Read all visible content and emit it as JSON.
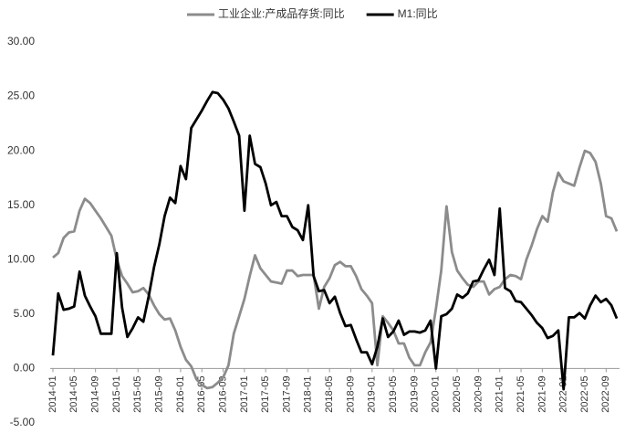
{
  "chart_data": {
    "type": "line",
    "categories": [
      "2014-01",
      null,
      null,
      null,
      "2014-05",
      null,
      null,
      null,
      "2014-09",
      null,
      null,
      null,
      "2015-01",
      null,
      null,
      null,
      "2015-05",
      null,
      null,
      null,
      "2015-09",
      null,
      null,
      null,
      "2016-01",
      null,
      null,
      null,
      "2016-05",
      null,
      null,
      null,
      "2016-09",
      null,
      null,
      null,
      "2017-01",
      null,
      null,
      null,
      "2017-05",
      null,
      null,
      null,
      "2017-09",
      null,
      null,
      null,
      "2018-01",
      null,
      null,
      null,
      "2018-05",
      null,
      null,
      null,
      "2018-09",
      null,
      null,
      null,
      "2019-01",
      null,
      null,
      null,
      "2019-05",
      null,
      null,
      null,
      "2019-09",
      null,
      null,
      null,
      "2020-01",
      null,
      null,
      null,
      "2020-05",
      null,
      null,
      null,
      "2020-09",
      null,
      null,
      null,
      "2021-01",
      null,
      null,
      null,
      "2021-05",
      null,
      null,
      null,
      "2021-09",
      null,
      null,
      null,
      "2022-01",
      null,
      null,
      null,
      "2022-05",
      null,
      null,
      null,
      "2022-09",
      null,
      null
    ],
    "series": [
      {
        "name": "工业企业:产成品存货:同比",
        "color": "#8c8c8c",
        "values": [
          10.2,
          10.6,
          12.0,
          12.5,
          12.6,
          14.5,
          15.6,
          15.2,
          14.5,
          13.8,
          13.0,
          12.2,
          10.0,
          8.5,
          7.8,
          7.0,
          7.1,
          7.4,
          6.8,
          5.8,
          5.0,
          4.5,
          4.6,
          3.5,
          2.0,
          0.8,
          0.2,
          -1.0,
          -1.5,
          -1.8,
          -1.7,
          -1.3,
          -0.8,
          0.3,
          3.2,
          4.8,
          6.4,
          8.5,
          10.4,
          9.2,
          8.6,
          8.0,
          7.9,
          7.8,
          9.0,
          9.0,
          8.5,
          8.6,
          8.6,
          8.6,
          5.5,
          7.5,
          8.3,
          9.5,
          9.8,
          9.4,
          9.4,
          8.5,
          7.3,
          6.7,
          6.0,
          0.3,
          4.8,
          4.2,
          3.5,
          2.3,
          2.3,
          1.0,
          0.3,
          0.3,
          1.5,
          2.4,
          5.5,
          9.0,
          14.9,
          10.7,
          9.0,
          8.3,
          7.7,
          7.5,
          8.0,
          8.0,
          6.8,
          7.3,
          7.5,
          8.2,
          8.6,
          8.5,
          8.2,
          10.0,
          11.3,
          12.8,
          14.0,
          13.5,
          16.2,
          18.0,
          17.2,
          17.0,
          16.8,
          18.5,
          20.0,
          19.8,
          19.0,
          17.0,
          14.0,
          13.8,
          12.6
        ]
      },
      {
        "name": "M1:同比",
        "color": "#000000",
        "values": [
          1.2,
          6.9,
          5.4,
          5.5,
          5.7,
          8.9,
          6.7,
          5.7,
          4.8,
          3.2,
          3.2,
          3.2,
          10.6,
          5.6,
          2.9,
          3.7,
          4.7,
          4.3,
          6.6,
          9.3,
          11.4,
          14.0,
          15.7,
          15.2,
          18.6,
          17.4,
          22.1,
          22.9,
          23.7,
          24.6,
          25.4,
          25.3,
          24.7,
          23.9,
          22.7,
          21.4,
          14.5,
          21.4,
          18.8,
          18.5,
          17.0,
          15.0,
          15.3,
          14.0,
          14.0,
          13.0,
          12.7,
          11.8,
          15.0,
          8.5,
          7.1,
          7.2,
          6.0,
          6.6,
          5.1,
          3.9,
          4.0,
          2.7,
          1.5,
          1.5,
          0.4,
          2.0,
          4.6,
          2.9,
          3.4,
          4.4,
          3.1,
          3.4,
          3.4,
          3.3,
          3.5,
          4.4,
          0.0,
          4.8,
          5.0,
          5.5,
          6.8,
          6.5,
          6.9,
          8.0,
          8.1,
          9.1,
          10.0,
          8.6,
          14.7,
          7.4,
          7.1,
          6.2,
          6.1,
          5.5,
          4.9,
          4.2,
          3.7,
          2.8,
          3.0,
          3.5,
          -1.9,
          4.7,
          4.7,
          5.1,
          4.6,
          5.8,
          6.7,
          6.1,
          6.4,
          5.8,
          4.6
        ]
      }
    ],
    "ylim": [
      -5,
      30
    ],
    "yticks": [
      {
        "value": -5,
        "label": "-5.00"
      },
      {
        "value": 0,
        "label": "0.00"
      },
      {
        "value": 5,
        "label": "5.00"
      },
      {
        "value": 10,
        "label": "10.00"
      },
      {
        "value": 15,
        "label": "15.00"
      },
      {
        "value": 20,
        "label": "20.00"
      },
      {
        "value": 25,
        "label": "25.00"
      },
      {
        "value": 30,
        "label": "30.00"
      }
    ],
    "grid": false,
    "legend": "top"
  }
}
